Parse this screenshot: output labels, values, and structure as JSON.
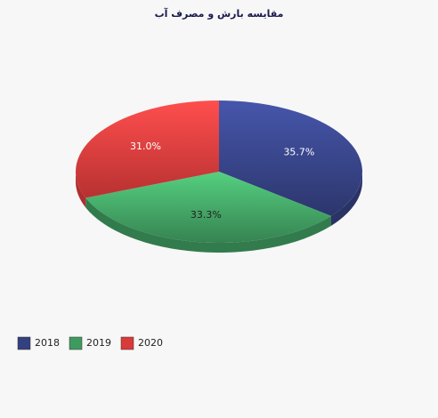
{
  "chart_data": {
    "type": "pie",
    "title": "مقایسه بارش و مصرف آب",
    "categories": [
      "2018",
      "2019",
      "2020"
    ],
    "values": [
      35.7,
      33.3,
      31.0
    ],
    "value_labels": [
      "35.7%",
      "33.3%",
      "31.0%"
    ],
    "colors": [
      "#34407f",
      "#3f9a5f",
      "#d93a3a"
    ],
    "legend": "bottom-left"
  }
}
